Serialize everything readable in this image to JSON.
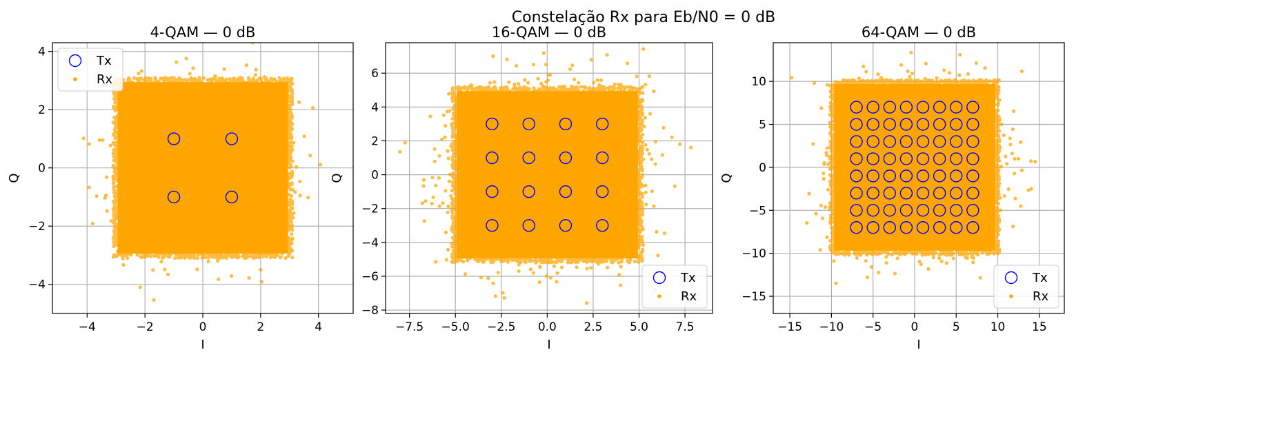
{
  "figure": {
    "suptitle": "Constelação Rx para Eb/N0 = 0 dB",
    "tx_color": "#0000ff",
    "rx_color": "#ffa500",
    "grid_color": "#b0b0b0"
  },
  "chart_data": [
    {
      "type": "scatter",
      "title": "4-QAM — 0 dB",
      "xlabel": "I",
      "ylabel": "Q",
      "xlim": [
        -5.2,
        5.2
      ],
      "ylim": [
        -5.0,
        4.3
      ],
      "xticks": [
        -4,
        -2,
        0,
        2,
        4
      ],
      "xtick_labels": [
        "−4",
        "−2",
        "0",
        "2",
        "4"
      ],
      "yticks": [
        -4,
        -2,
        0,
        2,
        4
      ],
      "ytick_labels": [
        "−4",
        "−2",
        "0",
        "2",
        "4"
      ],
      "grid": true,
      "legend_position": "upper-left",
      "series": [
        {
          "name": "Tx",
          "marker": "circle-open",
          "color": "#0000ff",
          "x": [
            -1,
            1,
            -1,
            1
          ],
          "y": [
            1,
            1,
            -1,
            -1
          ]
        },
        {
          "name": "Rx",
          "marker": "dot",
          "color": "#ffa500",
          "cloud_extent": [
            -3.1,
            3.1
          ],
          "noise_std": 1.0
        }
      ]
    },
    {
      "type": "scatter",
      "title": "16-QAM — 0 dB",
      "xlabel": "I",
      "ylabel": "Q",
      "xlim": [
        -8.8,
        9.0
      ],
      "ylim": [
        -8.2,
        7.8
      ],
      "xticks": [
        -7.5,
        -5.0,
        -2.5,
        0.0,
        2.5,
        5.0,
        7.5
      ],
      "xtick_labels": [
        "−7.5",
        "−5.0",
        "−2.5",
        "0.0",
        "2.5",
        "5.0",
        "7.5"
      ],
      "yticks": [
        -8,
        -6,
        -4,
        -2,
        0,
        2,
        4,
        6
      ],
      "ytick_labels": [
        "−8",
        "−6",
        "−4",
        "−2",
        "0",
        "2",
        "4",
        "6"
      ],
      "grid": true,
      "legend_position": "lower-right",
      "series": [
        {
          "name": "Tx",
          "marker": "circle-open",
          "color": "#0000ff",
          "levels": [
            -3,
            -1,
            1,
            3
          ]
        },
        {
          "name": "Rx",
          "marker": "dot",
          "color": "#ffa500",
          "cloud_extent": [
            -5.2,
            5.2
          ],
          "noise_std": 1.58
        }
      ]
    },
    {
      "type": "scatter",
      "title": "64-QAM — 0 dB",
      "xlabel": "I",
      "ylabel": "Q",
      "xlim": [
        -17.0,
        18.0
      ],
      "ylim": [
        -17.0,
        14.5
      ],
      "xticks": [
        -15,
        -10,
        -5,
        0,
        5,
        10,
        15
      ],
      "xtick_labels": [
        "−15",
        "−10",
        "−5",
        "0",
        "5",
        "10",
        "15"
      ],
      "yticks": [
        -15,
        -10,
        -5,
        0,
        5,
        10
      ],
      "ytick_labels": [
        "−15",
        "−10",
        "−5",
        "0",
        "5",
        "10"
      ],
      "grid": true,
      "legend_position": "lower-right",
      "series": [
        {
          "name": "Tx",
          "marker": "circle-open",
          "color": "#0000ff",
          "levels": [
            -7,
            -5,
            -3,
            -1,
            1,
            3,
            5,
            7
          ]
        },
        {
          "name": "Rx",
          "marker": "dot",
          "color": "#ffa500",
          "cloud_extent": [
            -10.2,
            10.2
          ],
          "noise_std": 2.5
        }
      ]
    }
  ]
}
